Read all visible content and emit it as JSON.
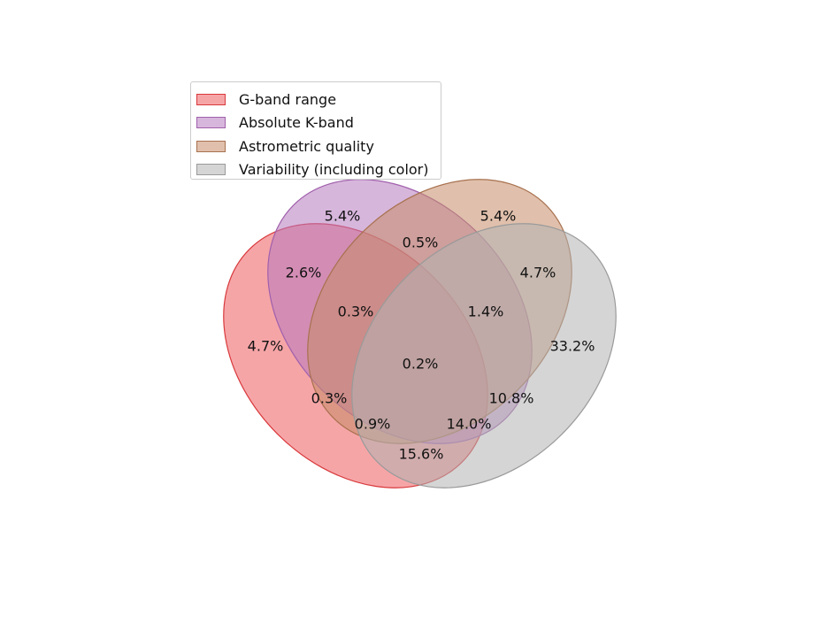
{
  "sets": [
    {
      "label": "G-band range",
      "fill": "#ef5b5f",
      "stroke": "#d8393c"
    },
    {
      "label": "Absolute K-band",
      "fill": "#b77ac0",
      "stroke": "#a060ab"
    },
    {
      "label": "Astrometric quality",
      "fill": "#c78d67",
      "stroke": "#a8714f"
    },
    {
      "label": "Variability (including color)",
      "fill": "#b2b2b2",
      "stroke": "#9a9a9a"
    }
  ],
  "regions": {
    "g_only": "4.7%",
    "k_only": "5.4%",
    "a_only": "5.4%",
    "v_only": "33.2%",
    "g_k": "2.6%",
    "k_a": "0.5%",
    "a_v": "4.7%",
    "g_v": "15.6%",
    "g_a": "0.3%",
    "k_v": "10.8%",
    "g_k_a": "0.3%",
    "k_a_v": "1.4%",
    "g_a_v": "0.9%",
    "g_k_v": "14.0%",
    "all": "0.2%"
  }
}
